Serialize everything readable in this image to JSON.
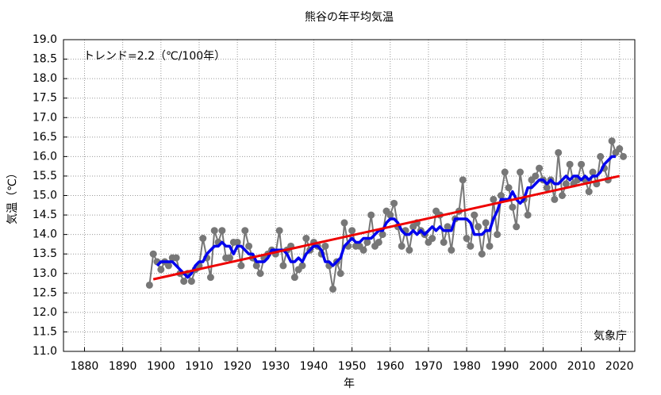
{
  "chart_data": {
    "type": "line",
    "title": "熊谷の年平均気温",
    "x_label": "年",
    "y_label": "気温（℃）",
    "annotations": [
      "トレンド=2.2（℃/100年）",
      "気象庁"
    ],
    "x": [
      1897,
      1898,
      1899,
      1900,
      1901,
      1902,
      1903,
      1904,
      1905,
      1906,
      1907,
      1908,
      1909,
      1910,
      1911,
      1912,
      1913,
      1914,
      1915,
      1916,
      1917,
      1918,
      1919,
      1920,
      1921,
      1922,
      1923,
      1924,
      1925,
      1926,
      1927,
      1928,
      1929,
      1930,
      1931,
      1932,
      1933,
      1934,
      1935,
      1936,
      1937,
      1938,
      1939,
      1940,
      1941,
      1942,
      1943,
      1944,
      1945,
      1946,
      1947,
      1948,
      1949,
      1950,
      1951,
      1952,
      1953,
      1954,
      1955,
      1956,
      1957,
      1958,
      1959,
      1960,
      1961,
      1962,
      1963,
      1964,
      1965,
      1966,
      1967,
      1968,
      1969,
      1970,
      1971,
      1972,
      1973,
      1974,
      1975,
      1976,
      1977,
      1978,
      1979,
      1980,
      1981,
      1982,
      1983,
      1984,
      1985,
      1986,
      1987,
      1988,
      1989,
      1990,
      1991,
      1992,
      1993,
      1994,
      1995,
      1996,
      1997,
      1998,
      1999,
      2000,
      2001,
      2002,
      2003,
      2004,
      2005,
      2006,
      2007,
      2008,
      2009,
      2010,
      2011,
      2012,
      2013,
      2014,
      2015,
      2016,
      2017,
      2018,
      2019,
      2020,
      2021
    ],
    "series": [
      {
        "color": "#777777",
        "markers": true,
        "values": [
          12.7,
          13.5,
          13.3,
          13.1,
          13.3,
          13.2,
          13.4,
          13.4,
          13.0,
          12.8,
          13.0,
          12.8,
          13.1,
          13.2,
          13.9,
          13.4,
          12.9,
          14.1,
          13.8,
          14.1,
          13.4,
          13.4,
          13.8,
          13.8,
          13.2,
          14.1,
          13.7,
          13.4,
          13.2,
          13.0,
          13.4,
          13.5,
          13.6,
          13.5,
          14.1,
          13.2,
          13.6,
          13.7,
          12.9,
          13.1,
          13.2,
          13.9,
          13.6,
          13.8,
          13.7,
          13.5,
          13.7,
          13.2,
          12.6,
          13.3,
          13.0,
          14.3,
          13.7,
          14.1,
          13.7,
          13.7,
          13.6,
          13.8,
          14.5,
          13.7,
          13.8,
          14.0,
          14.6,
          14.5,
          14.8,
          14.2,
          13.7,
          14.1,
          13.6,
          14.2,
          14.3,
          14.1,
          14.0,
          13.8,
          13.9,
          14.6,
          14.5,
          13.8,
          14.2,
          13.6,
          14.4,
          14.6,
          15.4,
          13.9,
          13.7,
          14.5,
          14.2,
          13.5,
          14.3,
          13.7,
          14.9,
          14.0,
          15.0,
          15.6,
          15.2,
          14.7,
          14.2,
          15.6,
          14.9,
          14.5,
          15.4,
          15.5,
          15.7,
          15.4,
          15.2,
          15.4,
          14.9,
          16.1,
          15.0,
          15.3,
          15.8,
          15.3,
          15.4,
          15.8,
          15.4,
          15.1,
          15.6,
          15.3,
          16.0,
          15.7,
          15.4,
          16.4,
          16.1,
          16.2,
          16.0
        ]
      },
      {
        "color": "#0000ee",
        "markers": false,
        "values": [
          null,
          null,
          13.2,
          13.3,
          13.3,
          13.3,
          13.3,
          13.2,
          13.1,
          13.0,
          12.9,
          13.0,
          13.2,
          13.3,
          13.3,
          13.5,
          13.6,
          13.7,
          13.7,
          13.8,
          13.7,
          13.7,
          13.5,
          13.7,
          13.7,
          13.6,
          13.5,
          13.5,
          13.3,
          13.3,
          13.3,
          13.4,
          13.6,
          13.6,
          13.6,
          13.6,
          13.5,
          13.3,
          13.3,
          13.4,
          13.3,
          13.5,
          13.6,
          13.7,
          13.7,
          13.6,
          13.3,
          13.3,
          13.2,
          13.3,
          13.4,
          13.7,
          13.8,
          13.9,
          13.8,
          13.8,
          13.9,
          13.9,
          13.9,
          14.0,
          14.1,
          14.1,
          14.3,
          14.4,
          14.4,
          14.3,
          14.1,
          14.0,
          14.0,
          14.1,
          14.0,
          14.1,
          14.0,
          14.1,
          14.2,
          14.1,
          14.2,
          14.1,
          14.1,
          14.1,
          14.4,
          14.4,
          14.4,
          14.4,
          14.3,
          14.0,
          14.0,
          14.0,
          14.1,
          14.1,
          14.4,
          14.6,
          14.9,
          14.9,
          14.9,
          15.1,
          14.9,
          14.8,
          14.9,
          15.2,
          15.2,
          15.3,
          15.4,
          15.4,
          15.3,
          15.4,
          15.3,
          15.3,
          15.4,
          15.5,
          15.4,
          15.5,
          15.5,
          15.4,
          15.5,
          15.4,
          15.5,
          15.5,
          15.6,
          15.8,
          15.9,
          16.0,
          16.0,
          null,
          null
        ]
      }
    ],
    "trend": {
      "color": "#ee0000",
      "x": [
        1898,
        2020
      ],
      "values": [
        12.85,
        15.5
      ]
    },
    "xlim": [
      1874.5,
      2024
    ],
    "ylim": [
      11,
      19
    ],
    "xticks": [
      1880,
      1890,
      1900,
      1910,
      1920,
      1930,
      1940,
      1950,
      1960,
      1970,
      1980,
      1990,
      2000,
      2010,
      2020
    ],
    "yticks": [
      {
        "value": 11,
        "label": "11.0"
      },
      11.5,
      {
        "value": 12,
        "label": "12.0"
      },
      12.5,
      {
        "value": 13,
        "label": "13.0"
      },
      13.5,
      {
        "value": 14,
        "label": "14.0"
      },
      14.5,
      {
        "value": 15,
        "label": "15.0"
      },
      15.5,
      {
        "value": 16,
        "label": "16.0"
      },
      16.5,
      {
        "value": 17,
        "label": "17.0"
      },
      17.5,
      {
        "value": 18,
        "label": "18.0"
      },
      18.5,
      {
        "value": 19,
        "label": "19.0"
      }
    ],
    "grid": true
  }
}
